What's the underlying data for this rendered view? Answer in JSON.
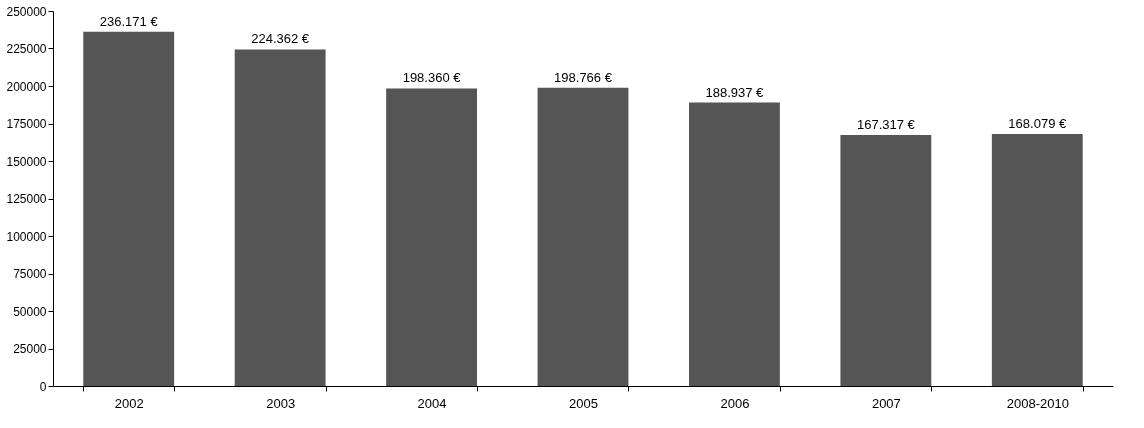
{
  "chart_data": {
    "type": "bar",
    "categories": [
      "2002",
      "2003",
      "2004",
      "2005",
      "2006",
      "2007",
      "2008-2010"
    ],
    "values": [
      236171,
      224362,
      198360,
      198766,
      188937,
      167317,
      168079
    ],
    "value_labels": [
      "236.171 €",
      "224.362 €",
      "198.360 €",
      "198.766 €",
      "188.937 €",
      "167.317 €",
      "168.079 €"
    ],
    "color": "#555555",
    "ylim": [
      0,
      250000
    ],
    "yticks": [
      0,
      25000,
      50000,
      75000,
      100000,
      125000,
      150000,
      175000,
      200000,
      225000,
      250000
    ],
    "grid": false
  }
}
